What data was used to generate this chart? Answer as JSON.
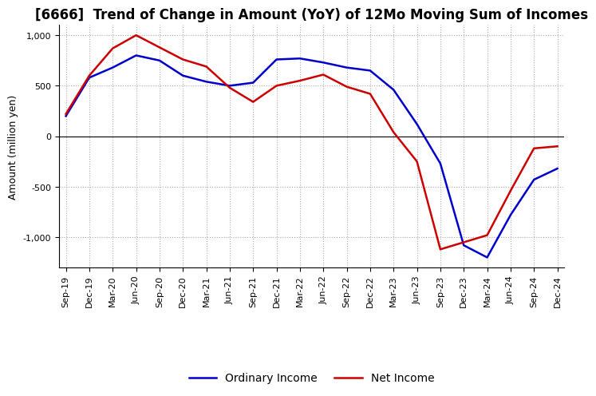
{
  "title": "[6666]  Trend of Change in Amount (YoY) of 12Mo Moving Sum of Incomes",
  "ylabel": "Amount (million yen)",
  "x_labels": [
    "Sep-19",
    "Dec-19",
    "Mar-20",
    "Jun-20",
    "Sep-20",
    "Dec-20",
    "Mar-21",
    "Jun-21",
    "Sep-21",
    "Dec-21",
    "Mar-22",
    "Jun-22",
    "Sep-22",
    "Dec-22",
    "Mar-23",
    "Jun-23",
    "Sep-23",
    "Dec-23",
    "Mar-24",
    "Jun-24",
    "Sep-24",
    "Dec-24"
  ],
  "ordinary_income": [
    200,
    580,
    680,
    800,
    750,
    600,
    540,
    500,
    530,
    760,
    770,
    730,
    680,
    650,
    460,
    120,
    -270,
    -1080,
    -1200,
    -780,
    -430,
    -320
  ],
  "net_income": [
    220,
    600,
    870,
    1000,
    880,
    760,
    690,
    480,
    340,
    500,
    550,
    610,
    490,
    420,
    40,
    -250,
    -1120,
    -1050,
    -980,
    -540,
    -120,
    -100
  ],
  "ordinary_income_color": "#0000cc",
  "net_income_color": "#cc0000",
  "ylim": [
    -1300,
    1100
  ],
  "yticks": [
    -1000,
    -500,
    0,
    500,
    1000
  ],
  "background_color": "#ffffff",
  "grid_color": "#aaaaaa",
  "grid_style": "dotted",
  "title_fontsize": 12,
  "axis_fontsize": 9,
  "tick_fontsize": 8
}
